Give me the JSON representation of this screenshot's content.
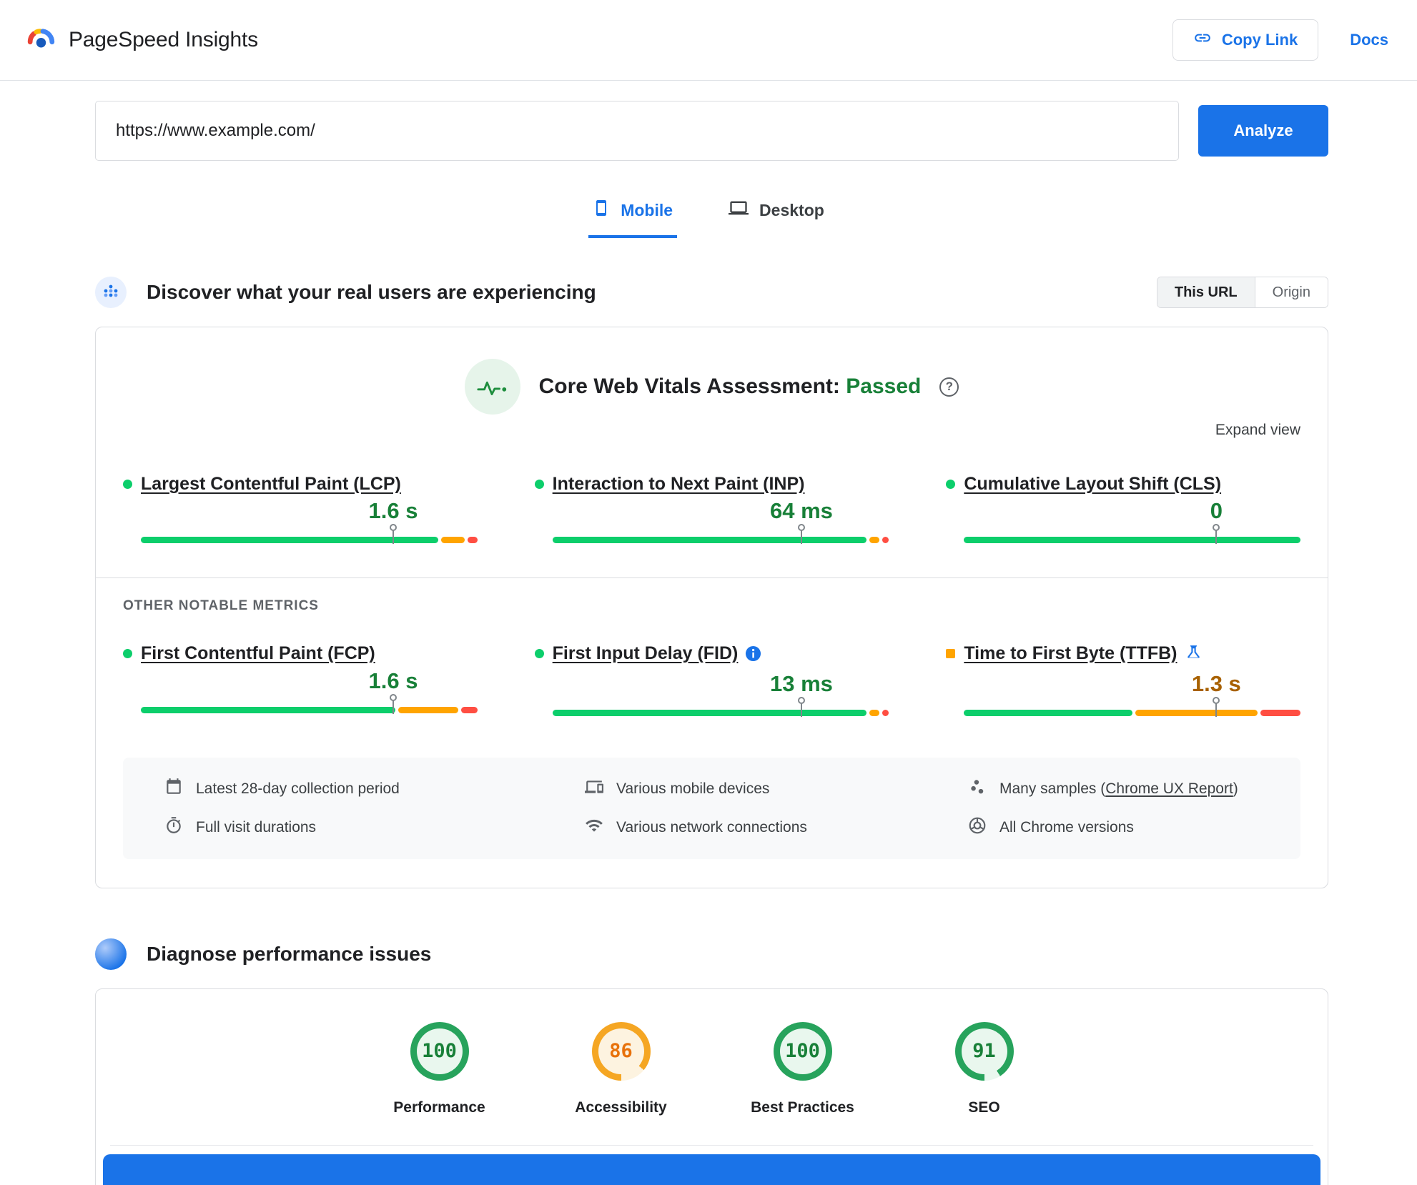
{
  "colors": {
    "primary_blue": "#1a73e8",
    "good_green_bar": "#0cce6b",
    "average_orange_bar": "#ffa400",
    "poor_red_bar": "#ff4e42",
    "passed_green_text": "#188038",
    "average_value_text": "#a86100"
  },
  "header": {
    "title": "PageSpeed Insights",
    "copy_link_label": "Copy Link",
    "docs_label": "Docs"
  },
  "url_form": {
    "url_value": "https://www.example.com/",
    "analyze_label": "Analyze"
  },
  "tabs": {
    "mobile": "Mobile",
    "desktop": "Desktop",
    "active": "Mobile"
  },
  "field_data": {
    "title": "Discover what your real users are experiencing",
    "toggle": {
      "this_url": "This URL",
      "origin": "Origin",
      "selected": "This URL"
    },
    "assessment": {
      "label": "Core Web Vitals Assessment:",
      "result": "Passed"
    },
    "expand_label": "Expand view",
    "other_metrics_label": "OTHER NOTABLE METRICS",
    "value_colors": {
      "good": "#188038",
      "average": "#a86100"
    },
    "indicator_colors": {
      "circle": "#0cce6b",
      "square": "#ffa400"
    },
    "metrics": [
      {
        "name": "Largest Contentful Paint (LCP)",
        "value": "1.6 s",
        "status": "good",
        "indicator": "circle",
        "marker_pct": 75,
        "segments": [
          {
            "color": "#0cce6b",
            "pct": 90
          },
          {
            "color": "#ffa400",
            "pct": 7
          },
          {
            "color": "#ff4e42",
            "pct": 3
          }
        ]
      },
      {
        "name": "Interaction to Next Paint (INP)",
        "value": "64 ms",
        "status": "good",
        "indicator": "circle",
        "marker_pct": 74,
        "segments": [
          {
            "color": "#0cce6b",
            "pct": 95
          },
          {
            "color": "#ffa400",
            "pct": 3
          },
          {
            "color": "#ff4e42",
            "pct": 2
          }
        ]
      },
      {
        "name": "Cumulative Layout Shift (CLS)",
        "value": "0",
        "status": "good",
        "indicator": "circle",
        "marker_pct": 75,
        "segments": [
          {
            "color": "#0cce6b",
            "pct": 100
          }
        ]
      },
      {
        "name": "First Contentful Paint (FCP)",
        "value": "1.6 s",
        "status": "good",
        "indicator": "circle",
        "marker_pct": 75,
        "segments": [
          {
            "color": "#0cce6b",
            "pct": 77
          },
          {
            "color": "#ffa400",
            "pct": 18
          },
          {
            "color": "#ff4e42",
            "pct": 5
          }
        ]
      },
      {
        "name": "First Input Delay (FID)",
        "value": "13 ms",
        "status": "good",
        "indicator": "circle",
        "marker_pct": 74,
        "segments": [
          {
            "color": "#0cce6b",
            "pct": 95
          },
          {
            "color": "#ffa400",
            "pct": 3
          },
          {
            "color": "#ff4e42",
            "pct": 2
          }
        ]
      },
      {
        "name": "Time to First Byte (TTFB)",
        "value": "1.3 s",
        "status": "average",
        "indicator": "square",
        "marker_pct": 75,
        "segments": [
          {
            "color": "#0cce6b",
            "pct": 51
          },
          {
            "color": "#ffa400",
            "pct": 37
          },
          {
            "color": "#ff4e42",
            "pct": 12
          }
        ]
      }
    ],
    "footnotes": [
      {
        "text": "Latest 28-day collection period"
      },
      {
        "text": "Various mobile devices"
      },
      {
        "text_prefix": "Many samples (",
        "link": "Chrome UX Report",
        "text_suffix": ")"
      },
      {
        "text": "Full visit durations"
      },
      {
        "text": "Various network connections"
      },
      {
        "text": "All Chrome versions"
      }
    ]
  },
  "diagnose": {
    "title": "Diagnose performance issues",
    "scores": [
      {
        "label": "Performance",
        "value": 100,
        "ring": "#27a35c",
        "tint": "#e9f7ee",
        "text": "#188038"
      },
      {
        "label": "Accessibility",
        "value": 86,
        "ring": "#f5a623",
        "tint": "#fdf3e0",
        "text": "#e8710a"
      },
      {
        "label": "Best Practices",
        "value": 100,
        "ring": "#27a35c",
        "tint": "#e9f7ee",
        "text": "#188038"
      },
      {
        "label": "SEO",
        "value": 91,
        "ring": "#27a35c",
        "tint": "#e9f7ee",
        "text": "#188038"
      }
    ]
  }
}
